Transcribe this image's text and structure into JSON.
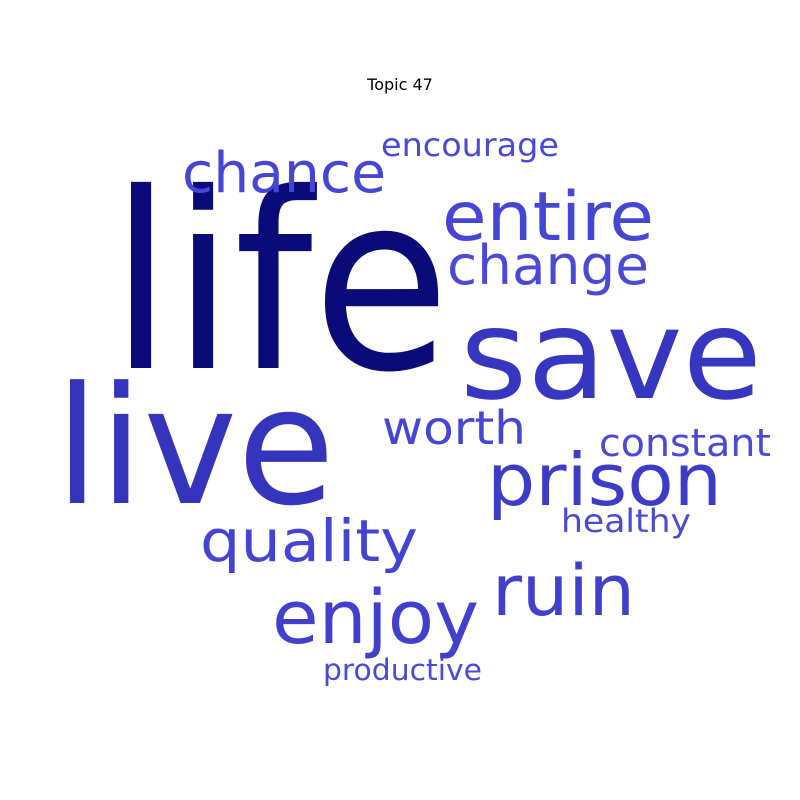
{
  "title": "Topic 47",
  "words": [
    {
      "text": "life",
      "color": "#0a0a78"
    },
    {
      "text": "save",
      "color": "#3636c0"
    },
    {
      "text": "live",
      "color": "#3434bd"
    },
    {
      "text": "entire",
      "color": "#4646d4"
    },
    {
      "text": "chance",
      "color": "#4646d4"
    },
    {
      "text": "change",
      "color": "#4a4ad6"
    },
    {
      "text": "prison",
      "color": "#3c3cc8"
    },
    {
      "text": "enjoy",
      "color": "#4040cc"
    },
    {
      "text": "ruin",
      "color": "#4040cc"
    },
    {
      "text": "quality",
      "color": "#4444d2"
    },
    {
      "text": "worth",
      "color": "#4646d4"
    },
    {
      "text": "constant",
      "color": "#4a4ad8"
    },
    {
      "text": "healthy",
      "color": "#4a4ad8"
    },
    {
      "text": "encourage",
      "color": "#4a4ad8"
    },
    {
      "text": "productive",
      "color": "#4a4ad8"
    }
  ]
}
